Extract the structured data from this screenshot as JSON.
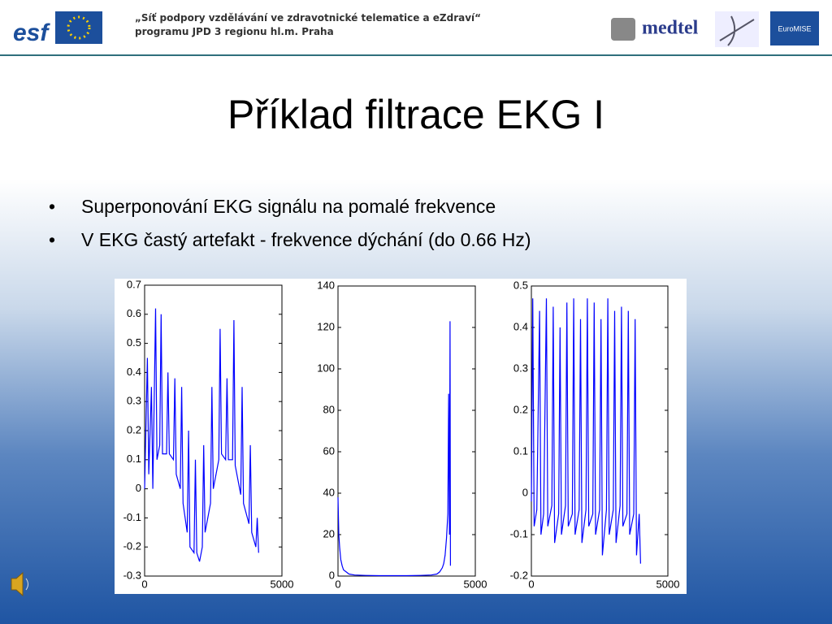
{
  "header": {
    "logo_esf": "esf",
    "logo_medtel": "medtel",
    "logo_euromise": "EuroMISE",
    "line1": "„Síť podpory vzdělávání ve zdravotnické telematice a eZdraví“",
    "line2": "programu JPD 3 regionu hl.m. Praha"
  },
  "title": "Příklad filtrace EKG I",
  "bullets": [
    "Superponování EKG signálu na pomalé frekvence",
    "V EKG častý artefakt - frekvence dýchání (do 0.66 Hz)"
  ],
  "chart_data": [
    {
      "type": "line",
      "color": "#0000ff",
      "xlim": [
        0,
        5000
      ],
      "xticks": [
        0,
        5000
      ],
      "ylim": [
        -0.3,
        0.7
      ],
      "yticks": [
        -0.3,
        -0.2,
        -0.1,
        0,
        0.1,
        0.2,
        0.3,
        0.4,
        0.5,
        0.6,
        0.7
      ],
      "x": [
        0,
        100,
        150,
        250,
        300,
        400,
        450,
        550,
        600,
        650,
        800,
        850,
        900,
        1050,
        1100,
        1150,
        1300,
        1350,
        1400,
        1550,
        1600,
        1650,
        1800,
        1850,
        1900,
        2000,
        2100,
        2150,
        2200,
        2400,
        2450,
        2500,
        2700,
        2750,
        2800,
        2950,
        3000,
        3050,
        3200,
        3250,
        3300,
        3500,
        3550,
        3600,
        3800,
        3850,
        3900,
        4050,
        4100,
        4150
      ],
      "values": [
        0,
        0.45,
        0.05,
        0.35,
        0,
        0.62,
        0.1,
        0.15,
        0.6,
        0.12,
        0.12,
        0.4,
        0.12,
        0.1,
        0.38,
        0.05,
        0,
        0.35,
        -0.05,
        -0.15,
        0.2,
        -0.2,
        -0.22,
        0.1,
        -0.22,
        -0.25,
        -0.2,
        0.15,
        -0.15,
        -0.05,
        0.35,
        0,
        0.1,
        0.55,
        0.12,
        0.1,
        0.38,
        0.1,
        0.1,
        0.58,
        0.08,
        -0.02,
        0.35,
        -0.05,
        -0.12,
        0.15,
        -0.15,
        -0.2,
        -0.1,
        -0.22
      ]
    },
    {
      "type": "line",
      "color": "#0000ff",
      "xlim": [
        0,
        5000
      ],
      "xticks": [
        0,
        5000
      ],
      "ylim": [
        0,
        140
      ],
      "yticks": [
        0,
        20,
        40,
        60,
        80,
        100,
        120,
        140
      ],
      "x": [
        0,
        30,
        60,
        100,
        150,
        200,
        300,
        400,
        600,
        1000,
        1500,
        2000,
        2500,
        3000,
        3400,
        3600,
        3700,
        3800,
        3850,
        3900,
        3950,
        4000,
        4030,
        4060,
        4080,
        4096
      ],
      "values": [
        38,
        20,
        14,
        8,
        5,
        3,
        2,
        1,
        0.5,
        0.3,
        0.2,
        0.2,
        0.2,
        0.3,
        0.5,
        1,
        2,
        4,
        6,
        10,
        18,
        30,
        88,
        20,
        123,
        5
      ]
    },
    {
      "type": "line",
      "color": "#0000ff",
      "xlim": [
        0,
        5000
      ],
      "xticks": [
        0,
        5000
      ],
      "ylim": [
        -0.2,
        0.5
      ],
      "yticks": [
        -0.2,
        -0.1,
        0,
        0.1,
        0.2,
        0.3,
        0.4,
        0.5
      ],
      "x": [
        0,
        50,
        100,
        200,
        300,
        350,
        450,
        550,
        600,
        750,
        800,
        850,
        1000,
        1050,
        1100,
        1250,
        1300,
        1350,
        1500,
        1550,
        1600,
        1750,
        1800,
        1850,
        2000,
        2050,
        2100,
        2250,
        2300,
        2350,
        2500,
        2550,
        2600,
        2750,
        2800,
        2850,
        3000,
        3050,
        3100,
        3250,
        3300,
        3350,
        3500,
        3550,
        3600,
        3750,
        3800,
        3850,
        3950,
        4000
      ],
      "values": [
        -0.02,
        0.47,
        -0.08,
        -0.04,
        0.44,
        -0.1,
        -0.05,
        0.47,
        -0.08,
        -0.03,
        0.45,
        -0.12,
        -0.05,
        0.4,
        -0.1,
        -0.03,
        0.46,
        -0.08,
        -0.05,
        0.47,
        -0.1,
        -0.04,
        0.42,
        -0.12,
        -0.04,
        0.47,
        -0.08,
        -0.05,
        0.46,
        -0.1,
        -0.04,
        0.42,
        -0.15,
        -0.04,
        0.47,
        -0.1,
        -0.04,
        0.44,
        -0.12,
        -0.03,
        0.45,
        -0.08,
        -0.05,
        0.44,
        -0.1,
        -0.05,
        0.42,
        -0.15,
        -0.05,
        -0.17
      ]
    }
  ]
}
